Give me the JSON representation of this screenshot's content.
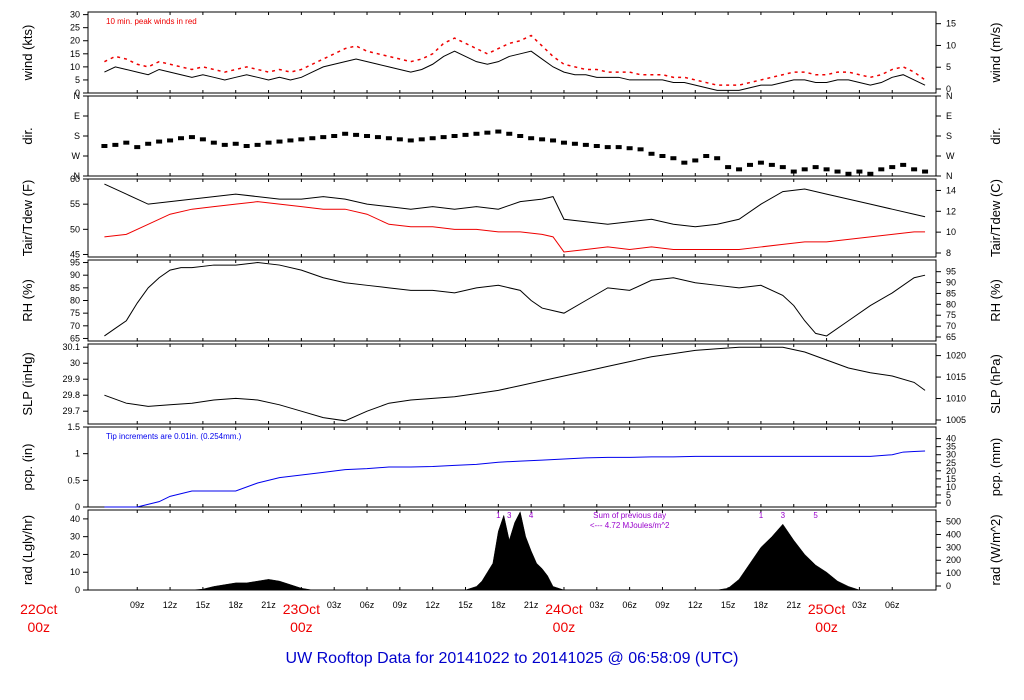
{
  "title": "UW Rooftop Data for 20141022  to  20141025 @ 06:58:09  (UTC)",
  "x_ticks": [
    "09z",
    "12z",
    "15z",
    "18z",
    "21z",
    "23Oct\n00z",
    "03z",
    "06z",
    "09z",
    "12z",
    "15z",
    "18z",
    "21z",
    "24Oct\n00z",
    "03z",
    "06z",
    "09z",
    "12z",
    "15z",
    "18z",
    "21z",
    "25Oct\n00z",
    "03z",
    "06z"
  ],
  "x_tick_hours": [
    9,
    12,
    15,
    18,
    21,
    24,
    27,
    30,
    33,
    36,
    39,
    42,
    45,
    48,
    51,
    54,
    57,
    60,
    63,
    66,
    69,
    72,
    75,
    78
  ],
  "day_labels": [
    {
      "date": "22Oct",
      "time": "00z",
      "hour": 0
    },
    {
      "date": "23Oct",
      "time": "00z",
      "hour": 24
    },
    {
      "date": "24Oct",
      "time": "00z",
      "hour": 48
    },
    {
      "date": "25Oct",
      "time": "00z",
      "hour": 72
    }
  ],
  "colors": {
    "axis": "#000000",
    "red": "#ee0000",
    "blue": "#0000ee",
    "purple": "#9900cc",
    "title": "#0000cc"
  },
  "chart_data": [
    {
      "type": "line",
      "name": "wind",
      "ylabel_left": "wind (kts)",
      "ylabel_right": "wind (m/s)",
      "ylim": [
        0,
        31
      ],
      "yticks_left": [
        0,
        5,
        10,
        15,
        20,
        25,
        30
      ],
      "yticks_right": [
        0,
        5,
        10,
        15
      ],
      "annotation": "10 min. peak winds in red",
      "x": [
        6,
        7,
        8,
        9,
        10,
        11,
        12,
        13,
        14,
        15,
        16,
        17,
        18,
        19,
        20,
        21,
        22,
        23,
        24,
        25,
        26,
        27,
        28,
        29,
        30,
        31,
        32,
        33,
        34,
        35,
        36,
        37,
        38,
        39,
        40,
        41,
        42,
        43,
        44,
        45,
        46,
        47,
        48,
        49,
        50,
        51,
        52,
        53,
        54,
        55,
        56,
        57,
        58,
        59,
        60,
        61,
        62,
        63,
        64,
        65,
        66,
        67,
        68,
        69,
        70,
        71,
        72,
        73,
        74,
        75,
        76,
        77,
        78,
        79,
        80,
        81
      ],
      "series": [
        {
          "values": [
            8,
            10,
            9,
            8,
            7,
            9,
            8,
            7,
            6,
            7,
            6,
            5,
            6,
            7,
            6,
            5,
            6,
            5,
            6,
            8,
            10,
            11,
            12,
            13,
            12,
            11,
            10,
            9,
            8,
            9,
            11,
            14,
            16,
            14,
            12,
            11,
            12,
            14,
            15,
            16,
            13,
            10,
            8,
            7,
            7,
            6,
            6,
            6,
            5,
            5,
            5,
            5,
            4,
            4,
            3,
            2,
            1,
            1,
            1,
            2,
            3,
            3,
            4,
            5,
            5,
            4,
            4,
            5,
            5,
            4,
            3,
            4,
            6,
            7,
            5,
            3
          ]
        },
        {
          "values": [
            12,
            14,
            13,
            11,
            10,
            12,
            11,
            10,
            9,
            10,
            9,
            8,
            9,
            10,
            9,
            8,
            9,
            8,
            9,
            11,
            13,
            15,
            17,
            18,
            16,
            15,
            14,
            13,
            12,
            13,
            15,
            19,
            21,
            19,
            17,
            15,
            17,
            19,
            20,
            22,
            18,
            14,
            11,
            10,
            9,
            9,
            8,
            8,
            8,
            7,
            7,
            7,
            6,
            6,
            5,
            4,
            3,
            3,
            3,
            4,
            5,
            6,
            7,
            8,
            8,
            7,
            7,
            8,
            8,
            7,
            6,
            7,
            9,
            10,
            8,
            5
          ]
        }
      ]
    },
    {
      "type": "scatter",
      "name": "dir.",
      "ylabel_left": "dir.",
      "ylabel_right": "dir.",
      "yticks_left": [
        "N",
        "W",
        "S",
        "E",
        "N"
      ],
      "yticks_right": [
        "N",
        "W",
        "S",
        "E",
        "N"
      ],
      "ylim": [
        0,
        360
      ],
      "x": [
        6,
        7,
        8,
        9,
        10,
        11,
        12,
        13,
        14,
        15,
        16,
        17,
        18,
        19,
        20,
        21,
        22,
        23,
        24,
        25,
        26,
        27,
        28,
        29,
        30,
        31,
        32,
        33,
        34,
        35,
        36,
        37,
        38,
        39,
        40,
        41,
        42,
        43,
        44,
        45,
        46,
        47,
        48,
        49,
        50,
        51,
        52,
        53,
        54,
        55,
        56,
        57,
        58,
        59,
        60,
        61,
        62,
        63,
        64,
        65,
        66,
        67,
        68,
        69,
        70,
        71,
        72,
        73,
        74,
        75,
        76,
        77,
        78,
        79,
        80,
        81
      ],
      "series": [
        {
          "values": [
            135,
            140,
            150,
            130,
            145,
            155,
            160,
            170,
            175,
            165,
            150,
            140,
            145,
            135,
            140,
            150,
            155,
            160,
            165,
            170,
            175,
            180,
            190,
            185,
            180,
            175,
            170,
            165,
            160,
            165,
            170,
            175,
            180,
            185,
            190,
            195,
            200,
            190,
            180,
            170,
            165,
            160,
            150,
            145,
            140,
            135,
            130,
            130,
            125,
            120,
            100,
            90,
            80,
            60,
            70,
            90,
            80,
            40,
            30,
            50,
            60,
            50,
            40,
            20,
            30,
            40,
            30,
            20,
            10,
            20,
            10,
            30,
            40,
            50,
            30,
            20
          ]
        }
      ]
    },
    {
      "type": "line",
      "name": "Tair/Tdew",
      "ylabel_left": "Tair/Tdew (F)",
      "ylabel_right": "Tair/Tdew (C)",
      "ylim": [
        44.5,
        60
      ],
      "yticks_left": [
        45,
        50,
        55,
        60
      ],
      "yticks_right": [
        8,
        10,
        12,
        14
      ],
      "x": [
        6,
        8,
        10,
        12,
        14,
        16,
        18,
        20,
        22,
        24,
        26,
        28,
        30,
        32,
        34,
        36,
        38,
        40,
        42,
        44,
        46,
        47,
        48,
        50,
        52,
        54,
        56,
        58,
        60,
        62,
        64,
        66,
        68,
        70,
        72,
        74,
        76,
        78,
        80,
        81
      ],
      "series": [
        {
          "name": "Tair",
          "values": [
            59,
            57,
            55,
            55.5,
            56,
            56.5,
            57,
            56.5,
            56,
            56,
            56.5,
            56,
            55,
            54.5,
            54,
            54.5,
            54,
            54.5,
            54,
            55.5,
            56,
            56.5,
            52,
            51.5,
            51,
            51.5,
            52,
            51,
            50.5,
            51,
            52,
            55,
            57.5,
            58,
            57,
            56,
            55,
            54,
            53,
            52.5
          ]
        },
        {
          "name": "Tdew",
          "values": [
            48.5,
            49,
            51,
            53,
            54,
            54.5,
            55,
            55.5,
            55,
            54.5,
            54,
            54,
            53,
            51,
            50.5,
            50.5,
            50,
            50,
            49.5,
            49.5,
            49,
            48.5,
            45.5,
            46,
            46.5,
            46,
            46.5,
            46,
            46,
            46,
            46,
            46.5,
            47,
            47.5,
            47.5,
            48,
            48.5,
            49,
            49.5,
            49.5
          ]
        }
      ]
    },
    {
      "type": "line",
      "name": "RH",
      "ylabel_left": "RH (%)",
      "ylabel_right": "RH (%)",
      "ylim": [
        64,
        96
      ],
      "yticks_left": [
        65,
        70,
        75,
        80,
        85,
        90,
        95
      ],
      "yticks_right": [
        65,
        70,
        75,
        80,
        85,
        90,
        95
      ],
      "x": [
        6,
        7,
        8,
        9,
        10,
        11,
        12,
        13,
        14,
        16,
        18,
        20,
        22,
        24,
        26,
        28,
        30,
        32,
        34,
        36,
        38,
        40,
        42,
        44,
        45,
        46,
        47,
        48,
        50,
        52,
        54,
        56,
        58,
        60,
        62,
        64,
        66,
        68,
        69,
        70,
        71,
        72,
        74,
        76,
        78,
        80,
        81
      ],
      "series": [
        {
          "values": [
            66,
            69,
            72,
            79,
            85,
            89,
            92,
            93,
            93,
            94,
            94,
            95,
            94,
            92,
            89,
            87,
            86,
            85,
            84,
            84,
            83,
            85,
            86,
            84,
            80,
            77,
            76,
            75,
            80,
            85,
            84,
            88,
            89,
            87,
            86,
            85,
            86,
            82,
            78,
            72,
            67,
            66,
            72,
            78,
            83,
            89,
            90
          ]
        }
      ]
    },
    {
      "type": "line",
      "name": "SLP",
      "ylabel_left": "SLP (inHg)",
      "ylabel_right": "SLP (hPa)",
      "ylim": [
        29.62,
        30.12
      ],
      "yticks_left": [
        29.7,
        29.8,
        29.9,
        30.0,
        30.1
      ],
      "yticks_right": [
        1005,
        1010,
        1015,
        1020
      ],
      "x": [
        6,
        8,
        10,
        12,
        14,
        16,
        18,
        20,
        22,
        24,
        26,
        28,
        30,
        32,
        34,
        36,
        38,
        40,
        42,
        44,
        46,
        48,
        50,
        52,
        54,
        56,
        58,
        60,
        62,
        64,
        66,
        68,
        70,
        72,
        74,
        76,
        78,
        80,
        81
      ],
      "series": [
        {
          "values": [
            29.8,
            29.75,
            29.73,
            29.74,
            29.75,
            29.77,
            29.78,
            29.77,
            29.74,
            29.7,
            29.66,
            29.64,
            29.7,
            29.75,
            29.77,
            29.78,
            29.79,
            29.81,
            29.83,
            29.86,
            29.89,
            29.92,
            29.95,
            29.98,
            30.01,
            30.04,
            30.06,
            30.08,
            30.09,
            30.1,
            30.1,
            30.1,
            30.07,
            30.02,
            29.97,
            29.94,
            29.92,
            29.88,
            29.83
          ]
        }
      ]
    },
    {
      "type": "line",
      "name": "pcp.",
      "ylabel_left": "pcp. (in)",
      "ylabel_right": "pcp. (mm)",
      "ylim": [
        0,
        1.5
      ],
      "yticks_left": [
        0.0,
        0.5,
        1.0,
        1.5
      ],
      "yticks_right": [
        0,
        5,
        10,
        15,
        20,
        25,
        30,
        35,
        40
      ],
      "annotation": "Tip increments are 0.01in. (0.254mm.)",
      "x": [
        6,
        8,
        9,
        11,
        12,
        14,
        16,
        18,
        20,
        22,
        24,
        26,
        28,
        30,
        32,
        34,
        36,
        38,
        40,
        42,
        44,
        46,
        48,
        50,
        52,
        54,
        56,
        58,
        60,
        62,
        64,
        66,
        68,
        70,
        72,
        74,
        76,
        78,
        79,
        80,
        81
      ],
      "series": [
        {
          "values": [
            0.0,
            0.0,
            0.0,
            0.1,
            0.2,
            0.3,
            0.3,
            0.3,
            0.45,
            0.55,
            0.6,
            0.65,
            0.7,
            0.72,
            0.75,
            0.75,
            0.76,
            0.78,
            0.8,
            0.84,
            0.86,
            0.88,
            0.9,
            0.92,
            0.93,
            0.93,
            0.94,
            0.94,
            0.95,
            0.95,
            0.95,
            0.95,
            0.95,
            0.95,
            0.95,
            0.95,
            0.95,
            0.98,
            1.03,
            1.04,
            1.05
          ]
        }
      ]
    },
    {
      "type": "area",
      "name": "rad",
      "ylabel_left": "rad (Lgly/hr)",
      "ylabel_right": "rad (W/m^2)",
      "ylim": [
        0,
        45
      ],
      "yticks_left": [
        0,
        10,
        20,
        30,
        40
      ],
      "yticks_right": [
        0,
        100,
        200,
        300,
        400,
        500
      ],
      "annotation_lines": [
        "Sum of previous day",
        "<--- 4.72 MJoules/m^2"
      ],
      "peak_labels": [
        {
          "label": "1",
          "hour": 42
        },
        {
          "label": "3",
          "hour": 43
        },
        {
          "label": "4",
          "hour": 45
        },
        {
          "label": "1",
          "hour": 66
        },
        {
          "label": "3",
          "hour": 68
        },
        {
          "label": "5",
          "hour": 71
        }
      ],
      "x": [
        6,
        7,
        8,
        9,
        10,
        11,
        12,
        13,
        14,
        15,
        16,
        17,
        18,
        19,
        20,
        21,
        22,
        23,
        24,
        25,
        26,
        27,
        28,
        29,
        30,
        31,
        32,
        33,
        34,
        35,
        36,
        37,
        38,
        39,
        40,
        40.5,
        41,
        41.5,
        42,
        42.5,
        43,
        43.5,
        44,
        44.5,
        45,
        45.5,
        46,
        46.5,
        47,
        48,
        49,
        50,
        51,
        52,
        53,
        54,
        55,
        56,
        57,
        58,
        59,
        60,
        61,
        62,
        63,
        64,
        65,
        66,
        67,
        68,
        69,
        70,
        71,
        72,
        73,
        74,
        75,
        76,
        77,
        78,
        79,
        80,
        81
      ],
      "series": [
        {
          "values": [
            0,
            0,
            0,
            0,
            0,
            0,
            0,
            0,
            0,
            0.5,
            2,
            3,
            4,
            4,
            5,
            6,
            5,
            3,
            1,
            0,
            0,
            0,
            0,
            0,
            0,
            0,
            0,
            0,
            0,
            0,
            0,
            0,
            0,
            0,
            2,
            5,
            10,
            15,
            33,
            42,
            28,
            38,
            44,
            30,
            22,
            15,
            12,
            8,
            2,
            0,
            0,
            0,
            0,
            0,
            0,
            0,
            0,
            0,
            0,
            0,
            0,
            0,
            0,
            0,
            1,
            6,
            15,
            24,
            30,
            37,
            28,
            20,
            14,
            10,
            5,
            2,
            0,
            0,
            0,
            0,
            0,
            0,
            0
          ]
        }
      ]
    }
  ]
}
